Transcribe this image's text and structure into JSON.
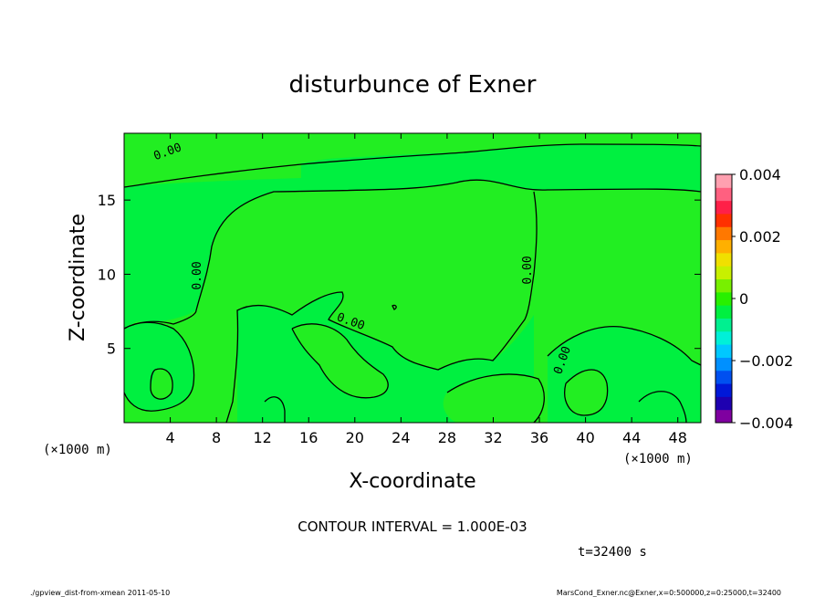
{
  "chart_data": {
    "type": "heatmap",
    "title": "disturbunce of Exner",
    "xlabel": "X-coordinate",
    "ylabel": "Z-coordinate",
    "x_unit_left": "(×1000 m)",
    "x_unit_right": "(×1000 m)",
    "xlim": [
      0,
      50
    ],
    "ylim": [
      0,
      19.5
    ],
    "x_ticks": [
      4,
      8,
      12,
      16,
      20,
      24,
      28,
      32,
      36,
      40,
      44,
      48
    ],
    "y_ticks": [
      5,
      10,
      15
    ],
    "contour_labels": [
      "0.00",
      "0.00",
      "0.00",
      "0.00",
      "0.00"
    ],
    "contour_interval_text": "CONTOUR INTERVAL = 1.000E-03",
    "time_text": "t=32400 s",
    "colorbar": {
      "min": -0.004,
      "max": 0.004,
      "tick_labels": [
        "0.004",
        "0.002",
        "0",
        "−0.002",
        "−0.004"
      ],
      "tick_values": [
        0.004,
        0.002,
        0,
        -0.002,
        -0.004
      ],
      "colors": [
        "#7f00a0",
        "#1e00b0",
        "#0018d8",
        "#0050f0",
        "#0090ff",
        "#00c8ff",
        "#00f0d8",
        "#00f090",
        "#00f040",
        "#28f000",
        "#78f000",
        "#c8f000",
        "#f0e000",
        "#ffb000",
        "#ff7800",
        "#ff3000",
        "#ff2048",
        "#ff6080",
        "#ffa0b0"
      ]
    },
    "field_colors": {
      "near_zero_positive": "#22ee22",
      "near_zero_negative": "#00f040"
    }
  },
  "footer": {
    "left": "./gpview_dist-from-xmean  2011-05-10",
    "right": "MarsCond_Exner.nc@Exner,x=0:500000,z=0:25000,t=32400"
  }
}
